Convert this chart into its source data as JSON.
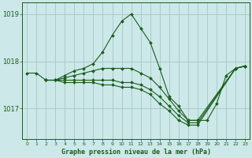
{
  "title": "Graphe pression niveau de la mer (hPa)",
  "bg_color": "#cce8e8",
  "grid_color": "#aacccc",
  "line_color": "#1a5c1a",
  "xlim": [
    -0.5,
    23.5
  ],
  "ylim": [
    1016.35,
    1019.25
  ],
  "yticks": [
    1017,
    1018,
    1019
  ],
  "xticks": [
    0,
    1,
    2,
    3,
    4,
    5,
    6,
    7,
    8,
    9,
    10,
    11,
    12,
    13,
    14,
    15,
    16,
    17,
    18,
    19,
    20,
    21,
    22,
    23
  ],
  "lines": [
    {
      "x": [
        0,
        1,
        2,
        3,
        4,
        5,
        6,
        7,
        8,
        9,
        10,
        11,
        12,
        13,
        14,
        15,
        16,
        17,
        18,
        19,
        20,
        21,
        22,
        23
      ],
      "y": [
        1017.75,
        1017.75,
        1017.6,
        1017.6,
        1017.7,
        1017.8,
        1017.85,
        1017.95,
        1018.2,
        1018.55,
        1018.85,
        1019.0,
        1018.7,
        1018.4,
        1017.85,
        1017.25,
        1017.05,
        1016.75,
        1016.75,
        1016.75,
        1017.1,
        1017.7,
        1017.85,
        1017.9
      ]
    },
    {
      "x": [
        2,
        3,
        4,
        5,
        6,
        7,
        8,
        9,
        10,
        11,
        12,
        13,
        14,
        15,
        16,
        17,
        18,
        22,
        23
      ],
      "y": [
        1017.6,
        1017.6,
        1017.65,
        1017.7,
        1017.75,
        1017.8,
        1017.85,
        1017.85,
        1017.85,
        1017.85,
        1017.75,
        1017.65,
        1017.45,
        1017.2,
        1016.95,
        1016.75,
        1016.75,
        1017.85,
        1017.9
      ]
    },
    {
      "x": [
        2,
        3,
        4,
        5,
        6,
        7,
        8,
        9,
        10,
        11,
        12,
        13,
        14,
        15,
        16,
        17,
        18,
        22,
        23
      ],
      "y": [
        1017.6,
        1017.6,
        1017.6,
        1017.6,
        1017.6,
        1017.6,
        1017.6,
        1017.6,
        1017.55,
        1017.55,
        1017.5,
        1017.4,
        1017.25,
        1017.05,
        1016.85,
        1016.7,
        1016.7,
        1017.85,
        1017.9
      ]
    },
    {
      "x": [
        2,
        3,
        4,
        5,
        6,
        7,
        8,
        9,
        10,
        11,
        12,
        13,
        14,
        15,
        16,
        17,
        18,
        22,
        23
      ],
      "y": [
        1017.6,
        1017.6,
        1017.55,
        1017.55,
        1017.55,
        1017.55,
        1017.5,
        1017.5,
        1017.45,
        1017.45,
        1017.4,
        1017.3,
        1017.1,
        1016.95,
        1016.75,
        1016.65,
        1016.65,
        1017.85,
        1017.9
      ]
    }
  ]
}
